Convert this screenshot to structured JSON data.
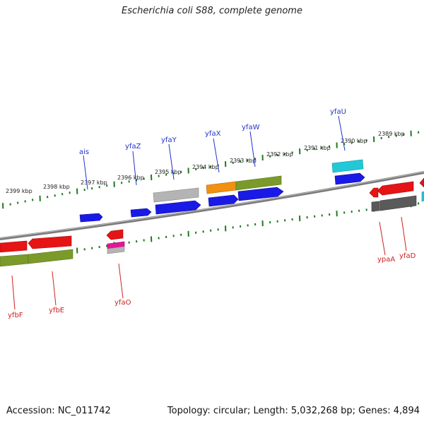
{
  "title": "Escherichia coli S88, complete genome",
  "footer": {
    "accession": "Accession: NC_011742",
    "stats": "Topology: circular; Length: 5,032,268 bp; Genes: 4,894"
  },
  "colors": {
    "backbone": "#777777",
    "ticks": "#1f7a1f",
    "top_label": "#2233cc",
    "bottom_label": "#cc2222"
  },
  "kbp_labels": [
    "2399 kbp",
    "2398 kbp",
    "2397 kbp",
    "2396 kbp",
    "2395 kbp",
    "2394 kbp",
    "2393 kbp",
    "2392 kbp",
    "2391 kbp",
    "2390 kbp",
    "2389 kbp"
  ],
  "gene_labels_top": [
    "ais",
    "yfaZ",
    "yfaY",
    "yfaX",
    "yfaW",
    "yfaU"
  ],
  "gene_labels_bottom": [
    "yfbF",
    "yfbE",
    "yfaO",
    "ypaA",
    "yfaD"
  ]
}
